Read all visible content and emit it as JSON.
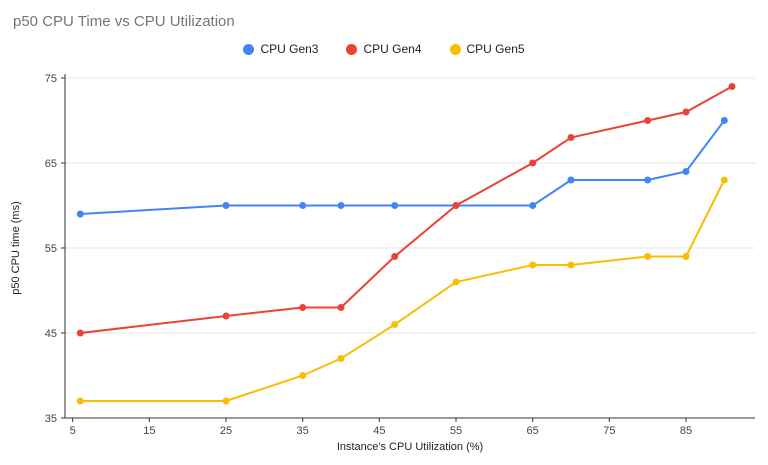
{
  "chart_data": {
    "type": "line",
    "title": "p50 CPU Time vs CPU Utilization",
    "xlabel": "Instance's CPU Utilization (%)",
    "ylabel": "p50 CPU time (ms)",
    "xlim": [
      4,
      94
    ],
    "ylim": [
      35,
      75
    ],
    "x_ticks": [
      5,
      15,
      25,
      35,
      45,
      55,
      65,
      75,
      85
    ],
    "y_ticks": [
      35,
      45,
      55,
      65,
      75
    ],
    "grid": true,
    "legend_position": "top",
    "series": [
      {
        "name": "CPU Gen3",
        "color": "#4285F4",
        "x": [
          6,
          25,
          35,
          40,
          47,
          55,
          65,
          70,
          80,
          85,
          90
        ],
        "y": [
          59,
          60,
          60,
          60,
          60,
          60,
          60,
          63,
          63,
          64,
          70
        ]
      },
      {
        "name": "CPU Gen4",
        "color": "#EA4335",
        "x": [
          6,
          25,
          35,
          40,
          47,
          55,
          65,
          70,
          80,
          85,
          91
        ],
        "y": [
          45,
          47,
          48,
          48,
          54,
          60,
          65,
          68,
          70,
          71,
          74
        ]
      },
      {
        "name": "CPU Gen5",
        "color": "#FBBC04",
        "x": [
          6,
          25,
          35,
          40,
          47,
          55,
          65,
          70,
          80,
          85,
          90
        ],
        "y": [
          37,
          37,
          40,
          42,
          46,
          51,
          53,
          53,
          54,
          54,
          63
        ]
      }
    ]
  }
}
